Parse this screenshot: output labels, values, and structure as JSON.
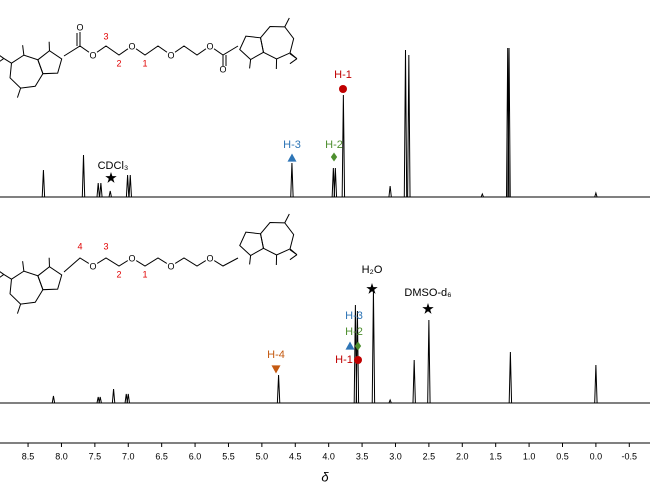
{
  "structures": [
    {
      "atoms": [
        "O",
        "O",
        "O",
        "O",
        "O",
        "O"
      ],
      "labels": [
        "3",
        "2",
        "1"
      ]
    },
    {
      "atoms": [
        "O",
        "O",
        "O",
        "O"
      ],
      "labels": [
        "4",
        "3",
        "2",
        "1"
      ]
    }
  ],
  "chart_data": {
    "type": "line",
    "x_label": "δ",
    "xlim": [
      8.92,
      -0.81
    ],
    "xticks": [
      8.5,
      {
        "value": 8,
        "label": "8.0"
      },
      7.5,
      {
        "value": 7,
        "label": "7.0"
      },
      6.5,
      {
        "value": 6,
        "label": "6.0"
      },
      5.5,
      {
        "value": 5,
        "label": "5.0"
      },
      4.5,
      {
        "value": 4,
        "label": "4.0"
      },
      3.5,
      {
        "value": 3,
        "label": "3.0"
      },
      2.5,
      {
        "value": 2,
        "label": "2.0"
      },
      1.5,
      {
        "value": 1,
        "label": "1.0"
      },
      0.5,
      {
        "value": 0,
        "label": "0.0"
      },
      -0.5
    ],
    "series": [
      {
        "color": "#000000",
        "x": [
          8.27,
          7.67,
          7.45,
          7.41,
          7.27,
          7.01,
          6.97,
          4.55,
          3.93,
          3.9,
          3.78,
          3.08,
          2.85,
          2.8,
          1.7,
          1.32,
          1.3,
          0.0
        ],
        "values": [
          27,
          42,
          14,
          14,
          6,
          22,
          22,
          34,
          29,
          29,
          102,
          11,
          147,
          142,
          3,
          149,
          149,
          4
        ],
        "annotations": [
          {
            "text": "CDCl₃",
            "marker": "star",
            "color": "#000000"
          },
          {
            "text": "H-3",
            "marker": "triangle",
            "color": "#2e75b6"
          },
          {
            "text": "H-2",
            "marker": "diamond",
            "color": "#4e8f2f"
          },
          {
            "text": "H-1",
            "marker": "circle",
            "color": "#c00000"
          }
        ]
      },
      {
        "color": "#000000",
        "x": [
          8.12,
          7.45,
          7.42,
          7.22,
          7.03,
          7.0,
          4.75,
          3.6,
          3.57,
          3.33,
          3.08,
          2.72,
          2.5,
          1.28,
          0.0
        ],
        "values": [
          7,
          6,
          6,
          14,
          9,
          9,
          28,
          98,
          92,
          113,
          3,
          43,
          83,
          51,
          38
        ],
        "annotations": [
          {
            "text": "H₂O",
            "marker": "star",
            "color": "#000000"
          },
          {
            "text": "DMSO-d₆",
            "marker": "star",
            "color": "#000000"
          },
          {
            "text": "H-4",
            "marker": "down-triangle",
            "color": "#c55a11"
          },
          {
            "text": "H-3",
            "marker": "triangle",
            "color": "#2e75b6"
          },
          {
            "text": "H-2",
            "marker": "diamond",
            "color": "#4e8f2f"
          },
          {
            "text": "H-1",
            "marker": "circle",
            "color": "#c00000"
          }
        ]
      }
    ]
  }
}
